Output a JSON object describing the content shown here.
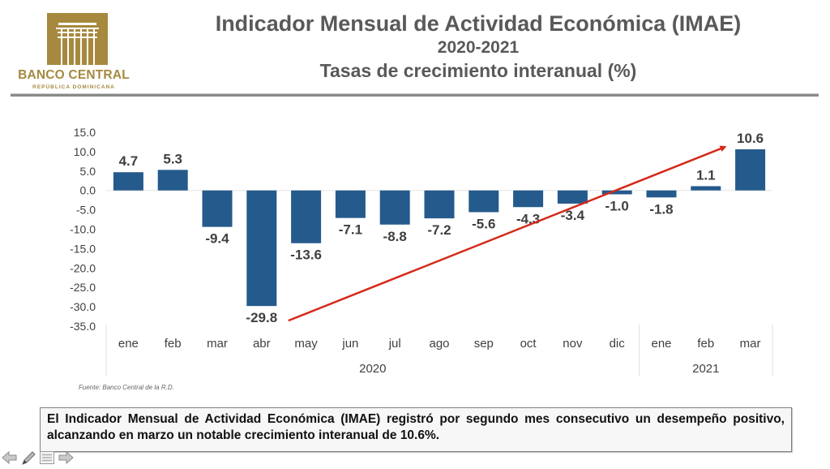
{
  "header": {
    "logo": {
      "name": "BANCO CENTRAL",
      "subtitle": "REPÚBLICA DOMINICANA",
      "color": "#a6893f",
      "icon": "column-building-icon"
    },
    "title_line1": "Indicador Mensual de Actividad Económica (IMAE)",
    "title_line2": "2020-2021",
    "title_line3": "Tasas de crecimiento interanual (%)"
  },
  "chart_data": {
    "type": "bar",
    "title": "Indicador Mensual de Actividad Económica (IMAE) 2020-2021",
    "subtitle": "Tasas de crecimiento interanual (%)",
    "xlabel": "",
    "ylabel": "",
    "categories": [
      "ene",
      "feb",
      "mar",
      "abr",
      "may",
      "jun",
      "jul",
      "ago",
      "sep",
      "oct",
      "nov",
      "dic",
      "ene",
      "feb",
      "mar"
    ],
    "groups": [
      {
        "label": "2020",
        "count": 12
      },
      {
        "label": "2021",
        "count": 3
      }
    ],
    "values": [
      4.7,
      5.3,
      -9.4,
      -29.8,
      -13.6,
      -7.1,
      -8.8,
      -7.2,
      -5.6,
      -4.3,
      -3.4,
      -1.0,
      -1.8,
      1.1,
      10.6
    ],
    "data_labels": [
      "4.7",
      "5.3",
      "-9.4",
      "-29.8",
      "-13.6",
      "-7.1",
      "-8.8",
      "-7.2",
      "-5.6",
      "-4.3",
      "-3.4",
      "-1.0",
      "-1.8",
      "1.1",
      "10.6"
    ],
    "ylim": [
      -35,
      15
    ],
    "yticks": [
      15,
      10,
      5,
      0,
      -5,
      -10,
      -15,
      -20,
      -25,
      -30,
      -35
    ],
    "ytick_labels": [
      "15.0",
      "10.0",
      "5.0",
      "0.0",
      "-5.0",
      "-10.0",
      "-15.0",
      "-20.0",
      "-25.0",
      "-30.0",
      "-35.0"
    ],
    "grid": false,
    "legend": "none",
    "bar_color": "#255a8c",
    "annotation": {
      "type": "arrow",
      "color": "#d42a1a",
      "from": {
        "category_index": 3,
        "value": -29.8
      },
      "to": {
        "category_index": 14,
        "value": 10.6
      },
      "description": "trend arrow from April 2020 low to March 2021"
    }
  },
  "source": "Fuente: Banco Central de la R.D.",
  "note": "El Indicador Mensual de Actividad Económica (IMAE) registró por segundo mes consecutivo un desempeño positivo, alcanzando en marzo un notable crecimiento interanual de 10.6%.",
  "nav": {
    "items": [
      {
        "name": "previous-slide",
        "icon": "arrow-left-icon"
      },
      {
        "name": "pen-tool",
        "icon": "pen-icon"
      },
      {
        "name": "slide-menu",
        "icon": "menu-icon"
      },
      {
        "name": "next-slide",
        "icon": "arrow-right-icon"
      }
    ]
  }
}
